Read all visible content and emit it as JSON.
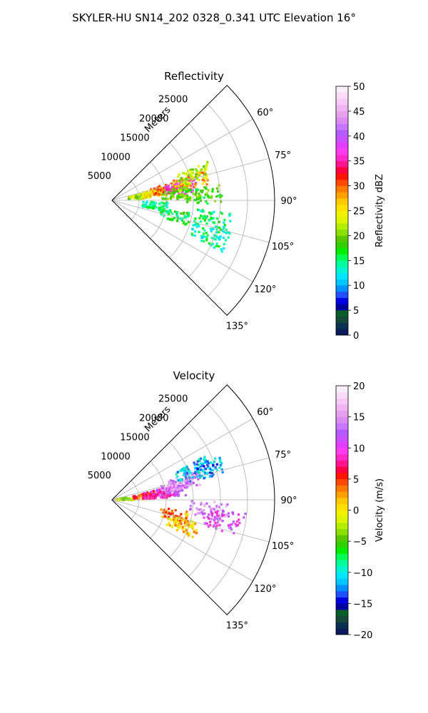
{
  "figure": {
    "title": "SKYLER-HU  SN14_202  0328_0.341 UTC Elevation 16°"
  },
  "chart_data": [
    {
      "type": "heatmap",
      "subtype": "polar-sector (PPI radar)",
      "title": "Reflectivity",
      "radial_label": "Meters",
      "radial_ticks": [
        5000,
        10000,
        15000,
        20000,
        25000
      ],
      "radial_tick_labels": [
        "5000",
        "10000",
        "15000",
        "20000",
        "25000"
      ],
      "rmax": 30000,
      "angle_range_deg": [
        45,
        135
      ],
      "angle_ticks": [
        60,
        75,
        90,
        105,
        120,
        135
      ],
      "angle_tick_labels": [
        "60°",
        "75°",
        "90°",
        "105°",
        "120°",
        "135°"
      ],
      "grid": true,
      "colorbar": {
        "label": "Reflectivity dBZ",
        "range": [
          0,
          50
        ],
        "ticks": [
          0,
          5,
          10,
          15,
          20,
          25,
          30,
          35,
          40,
          45,
          50
        ],
        "tick_labels": [
          "0",
          "5",
          "10",
          "15",
          "20",
          "25",
          "30",
          "35",
          "40",
          "45",
          "50"
        ],
        "colors": [
          "#0a1a5c",
          "#0b3050",
          "#14493a",
          "#0a5e2a",
          "#0000a0",
          "#0000e6",
          "#1e50ff",
          "#0090ff",
          "#00c8ff",
          "#00e6ff",
          "#00f5d0",
          "#00ff9a",
          "#00ff50",
          "#00ee00",
          "#30d000",
          "#5ac800",
          "#8ce000",
          "#b4ee00",
          "#dcf500",
          "#f2f200",
          "#ffe000",
          "#ffc800",
          "#ffa000",
          "#ff7800",
          "#ff4800",
          "#ff1400",
          "#ff0040",
          "#ff1490",
          "#ff28c8",
          "#ff3cf0",
          "#e43cff",
          "#c850ff",
          "#b45aff",
          "#c878ff",
          "#dc8cf0",
          "#e6a0ee",
          "#f0b4f2",
          "#f5c8f5",
          "#f8dcf8",
          "#fbeefb"
        ]
      },
      "cells": [
        {
          "az": 82,
          "r": 5000,
          "v": 22
        },
        {
          "az": 80,
          "r": 7500,
          "v": 25
        },
        {
          "az": 78,
          "r": 10000,
          "v": 30
        },
        {
          "az": 80,
          "r": 13000,
          "v": 37
        },
        {
          "az": 76,
          "r": 15000,
          "v": 28
        },
        {
          "az": 73,
          "r": 16000,
          "v": 22
        },
        {
          "az": 84,
          "r": 12000,
          "v": 20
        },
        {
          "az": 87,
          "r": 17000,
          "v": 18
        },
        {
          "az": 97,
          "r": 8000,
          "v": 15
        },
        {
          "az": 104,
          "r": 12000,
          "v": 16
        },
        {
          "az": 101,
          "r": 19000,
          "v": 15
        },
        {
          "az": 110,
          "r": 19000,
          "v": 14
        }
      ]
    },
    {
      "type": "heatmap",
      "subtype": "polar-sector (PPI radar)",
      "title": "Velocity",
      "radial_label": "Meters",
      "radial_ticks": [
        5000,
        10000,
        15000,
        20000,
        25000
      ],
      "radial_tick_labels": [
        "5000",
        "10000",
        "15000",
        "20000",
        "25000"
      ],
      "rmax": 30000,
      "angle_range_deg": [
        45,
        135
      ],
      "angle_ticks": [
        60,
        75,
        90,
        105,
        120,
        135
      ],
      "angle_tick_labels": [
        "60°",
        "75°",
        "90°",
        "105°",
        "120°",
        "135°"
      ],
      "grid": true,
      "colorbar": {
        "label": "Velocity (m/s)",
        "range": [
          -20,
          20
        ],
        "ticks": [
          -20,
          -15,
          -10,
          -5,
          0,
          5,
          10,
          15,
          20
        ],
        "tick_labels": [
          "−20",
          "−15",
          "−10",
          "−5",
          "0",
          "5",
          "10",
          "15",
          "20"
        ],
        "colors": [
          "#0a1a5c",
          "#0b3050",
          "#14493a",
          "#0a5e2a",
          "#0000a0",
          "#0000e6",
          "#1e50ff",
          "#0090ff",
          "#00c8ff",
          "#00e6ff",
          "#00f5d0",
          "#00ff9a",
          "#00ff50",
          "#00ee00",
          "#30d000",
          "#5ac800",
          "#8ce000",
          "#b4ee00",
          "#dcf500",
          "#f2f200",
          "#ffe000",
          "#ffc800",
          "#ffa000",
          "#ff7800",
          "#ff4800",
          "#ff1400",
          "#ff0040",
          "#ff1490",
          "#ff28c8",
          "#ff3cf0",
          "#e43cff",
          "#c850ff",
          "#b45aff",
          "#c878ff",
          "#dc8cf0",
          "#e6a0ee",
          "#f0b4f2",
          "#f5c8f5",
          "#f8dcf8",
          "#fbeefb"
        ]
      },
      "cells": [
        {
          "az": 86,
          "r": 2500,
          "v": -3
        },
        {
          "az": 84,
          "r": 6000,
          "v": 4
        },
        {
          "az": 83,
          "r": 8000,
          "v": 8
        },
        {
          "az": 82,
          "r": 11000,
          "v": 10
        },
        {
          "az": 79,
          "r": 12000,
          "v": 13
        },
        {
          "az": 76,
          "r": 14000,
          "v": 14
        },
        {
          "az": 70,
          "r": 16000,
          "v": -11
        },
        {
          "az": 72,
          "r": 18000,
          "v": -12
        },
        {
          "az": 104,
          "r": 12000,
          "v": 3
        },
        {
          "az": 110,
          "r": 14000,
          "v": 1
        },
        {
          "az": 96,
          "r": 18000,
          "v": 14
        },
        {
          "az": 101,
          "r": 21000,
          "v": 11
        }
      ]
    }
  ]
}
